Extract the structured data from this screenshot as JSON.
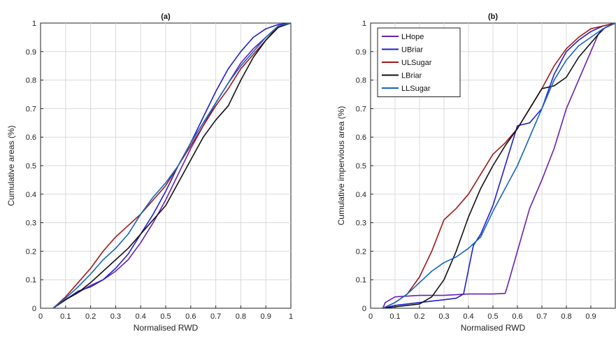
{
  "chart_data": [
    {
      "type": "line",
      "title": "(a)",
      "xlabel": "Normalised RWD",
      "ylabel": "Cumulative areas (%)",
      "xlim": [
        0,
        1
      ],
      "ylim": [
        0,
        1
      ],
      "xticks": [
        "0",
        "0.1",
        "0.2",
        "0.3",
        "0.4",
        "0.5",
        "0.6",
        "0.7",
        "0.8",
        "0.9",
        "1"
      ],
      "yticks": [
        "0",
        "0.1",
        "0.2",
        "0.3",
        "0.4",
        "0.5",
        "0.6",
        "0.7",
        "0.8",
        "0.9",
        "1"
      ],
      "grid": true,
      "legend": null,
      "series": [
        {
          "color": "#6a1fb0",
          "x": [
            0.05,
            0.1,
            0.15,
            0.2,
            0.25,
            0.3,
            0.35,
            0.4,
            0.45,
            0.5,
            0.55,
            0.6,
            0.65,
            0.7,
            0.75,
            0.8,
            0.85,
            0.9,
            0.95,
            1.0
          ],
          "y": [
            0,
            0.03,
            0.055,
            0.08,
            0.1,
            0.13,
            0.17,
            0.23,
            0.3,
            0.38,
            0.47,
            0.56,
            0.64,
            0.72,
            0.79,
            0.86,
            0.91,
            0.95,
            0.99,
            1.0
          ]
        },
        {
          "color": "#1f1fc8",
          "x": [
            0.05,
            0.1,
            0.15,
            0.2,
            0.25,
            0.3,
            0.35,
            0.4,
            0.45,
            0.5,
            0.55,
            0.6,
            0.65,
            0.7,
            0.75,
            0.8,
            0.85,
            0.9,
            0.95,
            1.0
          ],
          "y": [
            0,
            0.03,
            0.06,
            0.075,
            0.1,
            0.14,
            0.19,
            0.26,
            0.33,
            0.41,
            0.5,
            0.58,
            0.67,
            0.76,
            0.84,
            0.9,
            0.95,
            0.98,
            0.995,
            1.0
          ]
        },
        {
          "color": "#a01818",
          "x": [
            0.05,
            0.1,
            0.15,
            0.2,
            0.25,
            0.3,
            0.35,
            0.4,
            0.45,
            0.5,
            0.55,
            0.6,
            0.65,
            0.7,
            0.75,
            0.8,
            0.85,
            0.9,
            0.95,
            1.0
          ],
          "y": [
            0,
            0.04,
            0.09,
            0.14,
            0.2,
            0.25,
            0.29,
            0.33,
            0.38,
            0.43,
            0.5,
            0.57,
            0.64,
            0.71,
            0.77,
            0.84,
            0.89,
            0.94,
            0.99,
            1.0
          ]
        },
        {
          "color": "#111111",
          "x": [
            0.05,
            0.1,
            0.15,
            0.2,
            0.25,
            0.3,
            0.35,
            0.4,
            0.45,
            0.5,
            0.55,
            0.6,
            0.65,
            0.7,
            0.75,
            0.8,
            0.85,
            0.9,
            0.95,
            1.0
          ],
          "y": [
            0,
            0.03,
            0.055,
            0.09,
            0.13,
            0.17,
            0.21,
            0.26,
            0.31,
            0.36,
            0.44,
            0.52,
            0.6,
            0.66,
            0.71,
            0.8,
            0.88,
            0.94,
            0.985,
            1.0
          ]
        },
        {
          "color": "#1565c0",
          "x": [
            0.05,
            0.1,
            0.15,
            0.2,
            0.25,
            0.3,
            0.35,
            0.4,
            0.45,
            0.5,
            0.55,
            0.6,
            0.65,
            0.7,
            0.75,
            0.8,
            0.85,
            0.9,
            0.95,
            1.0
          ],
          "y": [
            0,
            0.035,
            0.075,
            0.12,
            0.17,
            0.21,
            0.26,
            0.33,
            0.39,
            0.44,
            0.5,
            0.58,
            0.65,
            0.72,
            0.79,
            0.85,
            0.9,
            0.95,
            0.99,
            1.0
          ]
        }
      ]
    },
    {
      "type": "line",
      "title": "(b)",
      "xlabel": "Normalised RWD",
      "ylabel": "Cumulative impervious area (%)",
      "xlim": [
        0,
        1
      ],
      "ylim": [
        0,
        1
      ],
      "xticks": [
        "0",
        "0.1",
        "0.2",
        "0.3",
        "0.4",
        "0.5",
        "0.6",
        "0.7",
        "0.8",
        "0.9"
      ],
      "yticks": [
        "0",
        "0.1",
        "0.2",
        "0.3",
        "0.4",
        "0.5",
        "0.6",
        "0.7",
        "0.8",
        "0.9",
        "1"
      ],
      "grid": true,
      "legend": "top-left",
      "series": [
        {
          "name": "LHope",
          "color": "#6a1fb0",
          "x": [
            0.05,
            0.06,
            0.1,
            0.2,
            0.3,
            0.4,
            0.5,
            0.55,
            0.56,
            0.6,
            0.65,
            0.7,
            0.75,
            0.8,
            0.85,
            0.9,
            0.93,
            0.96,
            1.0
          ],
          "y": [
            0,
            0.02,
            0.04,
            0.045,
            0.045,
            0.05,
            0.05,
            0.052,
            0.08,
            0.2,
            0.35,
            0.45,
            0.56,
            0.7,
            0.8,
            0.9,
            0.96,
            0.985,
            1.0
          ]
        },
        {
          "name": "UBriar",
          "color": "#1f1fc8",
          "x": [
            0.05,
            0.1,
            0.2,
            0.3,
            0.35,
            0.38,
            0.42,
            0.45,
            0.5,
            0.55,
            0.6,
            0.65,
            0.7,
            0.75,
            0.8,
            0.85,
            0.9,
            0.95,
            1.0
          ],
          "y": [
            0,
            0.01,
            0.02,
            0.03,
            0.035,
            0.05,
            0.22,
            0.26,
            0.36,
            0.5,
            0.64,
            0.65,
            0.7,
            0.82,
            0.9,
            0.94,
            0.97,
            0.99,
            1.0
          ]
        },
        {
          "name": "ULSugar",
          "color": "#a01818",
          "x": [
            0.05,
            0.1,
            0.15,
            0.2,
            0.25,
            0.3,
            0.35,
            0.4,
            0.45,
            0.5,
            0.55,
            0.6,
            0.65,
            0.7,
            0.75,
            0.8,
            0.85,
            0.9,
            0.95,
            1.0
          ],
          "y": [
            0,
            0.02,
            0.05,
            0.11,
            0.2,
            0.31,
            0.35,
            0.4,
            0.47,
            0.54,
            0.58,
            0.63,
            0.7,
            0.77,
            0.85,
            0.91,
            0.95,
            0.98,
            0.99,
            1.0
          ]
        },
        {
          "name": "LBriar",
          "color": "#111111",
          "x": [
            0.05,
            0.1,
            0.15,
            0.2,
            0.25,
            0.3,
            0.35,
            0.4,
            0.45,
            0.5,
            0.55,
            0.6,
            0.65,
            0.7,
            0.75,
            0.8,
            0.85,
            0.9,
            0.95,
            1.0
          ],
          "y": [
            0,
            0.005,
            0.01,
            0.015,
            0.04,
            0.1,
            0.2,
            0.32,
            0.42,
            0.5,
            0.57,
            0.63,
            0.7,
            0.77,
            0.78,
            0.81,
            0.88,
            0.93,
            0.98,
            1.0
          ]
        },
        {
          "name": "LLSugar",
          "color": "#1565c0",
          "x": [
            0.05,
            0.1,
            0.15,
            0.2,
            0.25,
            0.3,
            0.35,
            0.4,
            0.45,
            0.5,
            0.55,
            0.6,
            0.65,
            0.7,
            0.75,
            0.8,
            0.85,
            0.9,
            0.95,
            1.0
          ],
          "y": [
            0,
            0.02,
            0.05,
            0.09,
            0.13,
            0.16,
            0.18,
            0.21,
            0.25,
            0.34,
            0.42,
            0.5,
            0.6,
            0.7,
            0.8,
            0.87,
            0.92,
            0.95,
            0.98,
            1.0
          ]
        }
      ]
    }
  ]
}
